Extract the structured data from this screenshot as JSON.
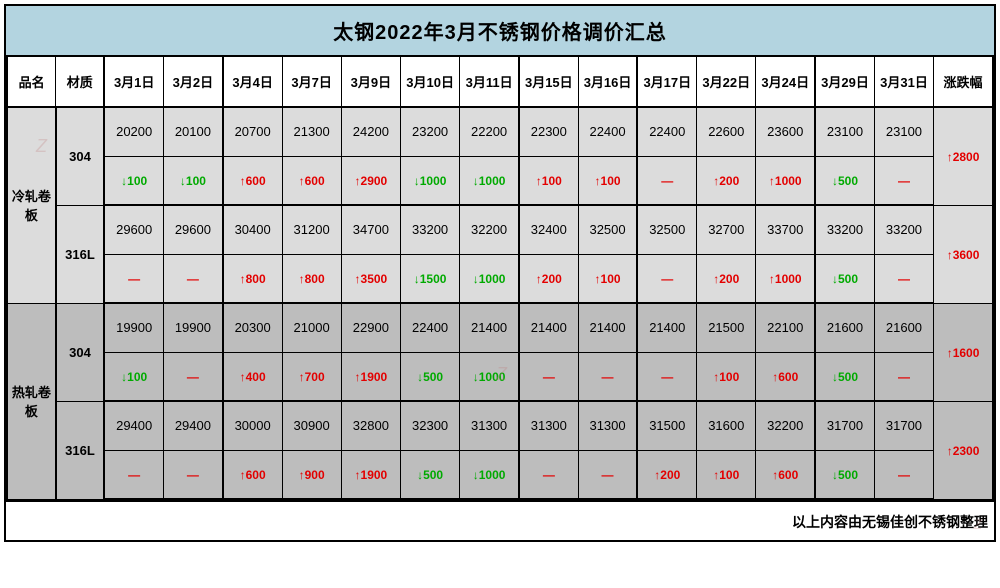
{
  "title": "太钢2022年3月不锈钢价格调价汇总",
  "headers": {
    "name": "品名",
    "material": "材质",
    "dates": [
      "3月1日",
      "3月2日",
      "3月4日",
      "3月7日",
      "3月9日",
      "3月10日",
      "3月11日",
      "3月15日",
      "3月16日",
      "3月17日",
      "3月22日",
      "3月24日",
      "3月29日",
      "3月31日"
    ],
    "change": "涨跌幅"
  },
  "group_breaks": [
    2,
    7,
    9,
    12
  ],
  "sections": [
    {
      "name": "冷轧卷板",
      "bg": "section-top",
      "materials": [
        {
          "mat": "304",
          "prices": [
            "20200",
            "20100",
            "20700",
            "21300",
            "24200",
            "23200",
            "22200",
            "22300",
            "22400",
            "22400",
            "22600",
            "23600",
            "23100",
            "23100"
          ],
          "deltas": [
            {
              "t": "down",
              "v": "100"
            },
            {
              "t": "down",
              "v": "100"
            },
            {
              "t": "up",
              "v": "600"
            },
            {
              "t": "up",
              "v": "600"
            },
            {
              "t": "up",
              "v": "2900"
            },
            {
              "t": "down",
              "v": "1000"
            },
            {
              "t": "down",
              "v": "1000"
            },
            {
              "t": "up",
              "v": "100"
            },
            {
              "t": "up",
              "v": "100"
            },
            {
              "t": "flat",
              "v": "—"
            },
            {
              "t": "up",
              "v": "200"
            },
            {
              "t": "up",
              "v": "1000"
            },
            {
              "t": "down",
              "v": "500"
            },
            {
              "t": "flat",
              "v": "—"
            }
          ],
          "change": {
            "t": "up",
            "v": "2800"
          }
        },
        {
          "mat": "316L",
          "prices": [
            "29600",
            "29600",
            "30400",
            "31200",
            "34700",
            "33200",
            "32200",
            "32400",
            "32500",
            "32500",
            "32700",
            "33700",
            "33200",
            "33200"
          ],
          "deltas": [
            {
              "t": "flat",
              "v": "—"
            },
            {
              "t": "flat",
              "v": "—"
            },
            {
              "t": "up",
              "v": "800"
            },
            {
              "t": "up",
              "v": "800"
            },
            {
              "t": "up",
              "v": "3500"
            },
            {
              "t": "down",
              "v": "1500"
            },
            {
              "t": "down",
              "v": "1000"
            },
            {
              "t": "up",
              "v": "200"
            },
            {
              "t": "up",
              "v": "100"
            },
            {
              "t": "flat",
              "v": "—"
            },
            {
              "t": "up",
              "v": "200"
            },
            {
              "t": "up",
              "v": "1000"
            },
            {
              "t": "down",
              "v": "500"
            },
            {
              "t": "flat",
              "v": "—"
            }
          ],
          "change": {
            "t": "up",
            "v": "3600"
          }
        }
      ]
    },
    {
      "name": "热轧卷板",
      "bg": "section-bot",
      "materials": [
        {
          "mat": "304",
          "prices": [
            "19900",
            "19900",
            "20300",
            "21000",
            "22900",
            "22400",
            "21400",
            "21400",
            "21400",
            "21400",
            "21500",
            "22100",
            "21600",
            "21600"
          ],
          "deltas": [
            {
              "t": "down",
              "v": "100"
            },
            {
              "t": "flat",
              "v": "—"
            },
            {
              "t": "up",
              "v": "400"
            },
            {
              "t": "up",
              "v": "700"
            },
            {
              "t": "up",
              "v": "1900"
            },
            {
              "t": "down",
              "v": "500"
            },
            {
              "t": "down",
              "v": "1000"
            },
            {
              "t": "flat",
              "v": "—"
            },
            {
              "t": "flat",
              "v": "—"
            },
            {
              "t": "flat",
              "v": "—"
            },
            {
              "t": "up",
              "v": "100"
            },
            {
              "t": "up",
              "v": "600"
            },
            {
              "t": "down",
              "v": "500"
            },
            {
              "t": "flat",
              "v": "—"
            }
          ],
          "change": {
            "t": "up",
            "v": "1600"
          }
        },
        {
          "mat": "316L",
          "prices": [
            "29400",
            "29400",
            "30000",
            "30900",
            "32800",
            "32300",
            "31300",
            "31300",
            "31300",
            "31500",
            "31600",
            "32200",
            "31700",
            "31700"
          ],
          "deltas": [
            {
              "t": "flat",
              "v": "—"
            },
            {
              "t": "flat",
              "v": "—"
            },
            {
              "t": "up",
              "v": "600"
            },
            {
              "t": "up",
              "v": "900"
            },
            {
              "t": "up",
              "v": "1900"
            },
            {
              "t": "down",
              "v": "500"
            },
            {
              "t": "down",
              "v": "1000"
            },
            {
              "t": "flat",
              "v": "—"
            },
            {
              "t": "flat",
              "v": "—"
            },
            {
              "t": "up",
              "v": "200"
            },
            {
              "t": "up",
              "v": "100"
            },
            {
              "t": "up",
              "v": "600"
            },
            {
              "t": "down",
              "v": "500"
            },
            {
              "t": "flat",
              "v": "—"
            }
          ],
          "change": {
            "t": "up",
            "v": "2300"
          }
        }
      ]
    }
  ],
  "footer": "以上内容由无锡佳创不锈钢整理",
  "colors": {
    "title_bg": "#b3d4e0",
    "section_top_bg": "#dcdcdc",
    "section_bot_bg": "#bdbdbd",
    "up_color": "#e30000",
    "down_color": "#00aa00",
    "border": "#000000"
  },
  "arrows": {
    "up": "↑",
    "down": "↓"
  }
}
